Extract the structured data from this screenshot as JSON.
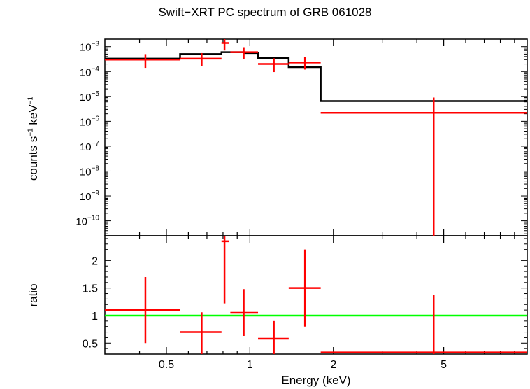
{
  "chart_data": [
    {
      "type": "scatter",
      "panel": "spectrum",
      "title": "Swift−XRT PC spectrum of GRB 061028",
      "ylabel_base": "counts s",
      "ylabel_mid": " keV",
      "ylabel_exp": "−1",
      "ylog": true,
      "ylim": [
        2.5e-11,
        0.002
      ],
      "xlog": true,
      "xlim": [
        0.3,
        10
      ],
      "ytick_labels": [
        {
          "value": 0.001,
          "base": "10",
          "exp": "−3"
        },
        {
          "value": 0.0001,
          "base": "10",
          "exp": "−4"
        },
        {
          "value": 1e-05,
          "base": "10",
          "exp": "−5"
        },
        {
          "value": 1e-06,
          "base": "10",
          "exp": "−6"
        },
        {
          "value": 1e-07,
          "base": "10",
          "exp": "−7"
        },
        {
          "value": 1e-08,
          "base": "10",
          "exp": "−8"
        },
        {
          "value": 1e-09,
          "base": "10",
          "exp": "−9"
        },
        {
          "value": 1e-10,
          "base": "10",
          "exp": "−10"
        }
      ],
      "data_points": [
        {
          "x": 0.42,
          "xlo": 0.3,
          "xhi": 0.56,
          "y": 0.0003,
          "ylo": 0.00014,
          "yhi": 0.0005
        },
        {
          "x": 0.67,
          "xlo": 0.56,
          "xhi": 0.79,
          "y": 0.00033,
          "ylo": 0.00017,
          "yhi": 0.00055
        },
        {
          "x": 0.81,
          "xlo": 0.79,
          "xhi": 0.84,
          "y": 0.0014,
          "ylo": 0.0007,
          "yhi": 0.0023
        },
        {
          "x": 0.95,
          "xlo": 0.85,
          "xhi": 1.07,
          "y": 0.0006,
          "ylo": 0.00032,
          "yhi": 0.00095
        },
        {
          "x": 1.22,
          "xlo": 1.07,
          "xhi": 1.38,
          "y": 0.0002,
          "ylo": 9.5e-05,
          "yhi": 0.00034
        },
        {
          "x": 1.58,
          "xlo": 1.38,
          "xhi": 1.8,
          "y": 0.00023,
          "ylo": 0.00012,
          "yhi": 0.00038
        },
        {
          "x": 4.6,
          "xlo": 1.8,
          "xhi": 10.0,
          "y": 2.2e-06,
          "ylo": 2.5e-11,
          "yhi": 9e-06
        }
      ],
      "model_steps": [
        {
          "xlo": 0.3,
          "xhi": 0.56,
          "y": 0.00033
        },
        {
          "xlo": 0.56,
          "xhi": 0.79,
          "y": 0.0005
        },
        {
          "xlo": 0.79,
          "xhi": 0.95,
          "y": 0.0006
        },
        {
          "xlo": 0.95,
          "xhi": 1.07,
          "y": 0.00055
        },
        {
          "xlo": 1.07,
          "xhi": 1.38,
          "y": 0.00035
        },
        {
          "xlo": 1.38,
          "xhi": 1.8,
          "y": 0.00015
        },
        {
          "xlo": 1.8,
          "xhi": 10.0,
          "y": 6.5e-06
        }
      ],
      "colors": {
        "data": "#ff0000",
        "model": "#000000"
      }
    },
    {
      "type": "scatter",
      "panel": "ratio",
      "ylabel": "ratio",
      "xlabel": "Energy (keV)",
      "xlog": true,
      "xlim": [
        0.3,
        10
      ],
      "ylim": [
        0.3,
        2.45
      ],
      "yticks": [
        0.5,
        1,
        1.5,
        2
      ],
      "ytick_labels": [
        "0.5",
        "1",
        "1.5",
        "2"
      ],
      "xticks": [
        0.5,
        1,
        2,
        5
      ],
      "xtick_labels": [
        "0.5",
        "1",
        "2",
        "5"
      ],
      "reference_line": {
        "y": 1,
        "color": "#00ff00"
      },
      "data_points": [
        {
          "x": 0.42,
          "xlo": 0.3,
          "xhi": 0.56,
          "y": 1.1,
          "ylo": 0.5,
          "yhi": 1.7
        },
        {
          "x": 0.67,
          "xlo": 0.56,
          "xhi": 0.79,
          "y": 0.7,
          "ylo": 0.3,
          "yhi": 1.06
        },
        {
          "x": 0.81,
          "xlo": 0.79,
          "xhi": 0.84,
          "y": 2.35,
          "ylo": 1.22,
          "yhi": 2.45
        },
        {
          "x": 0.95,
          "xlo": 0.85,
          "xhi": 1.07,
          "y": 1.05,
          "ylo": 0.63,
          "yhi": 1.48
        },
        {
          "x": 1.22,
          "xlo": 1.07,
          "xhi": 1.38,
          "y": 0.58,
          "ylo": 0.3,
          "yhi": 0.9
        },
        {
          "x": 1.58,
          "xlo": 1.38,
          "xhi": 1.8,
          "y": 1.5,
          "ylo": 0.8,
          "yhi": 2.2
        },
        {
          "x": 4.6,
          "xlo": 1.8,
          "xhi": 10.0,
          "y": 0.33,
          "ylo": 0.3,
          "yhi": 1.37
        }
      ],
      "colors": {
        "data": "#ff0000"
      }
    }
  ]
}
